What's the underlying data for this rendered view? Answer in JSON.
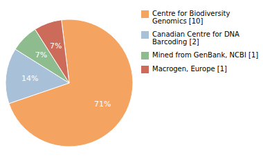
{
  "chart_data": {
    "type": "pie",
    "categories": [
      "Centre for Biodiversity\nGenomics [10]",
      "Canadian Centre for DNA\nBarcoding [2]",
      "Mined from GenBank, NCBI [1]",
      "Macrogen, Europe [1]"
    ],
    "values": [
      71,
      14,
      7,
      7
    ],
    "value_labels": [
      "71%",
      "14%",
      "7%",
      "7%"
    ],
    "colors": [
      "#F4A460",
      "#A8C0D8",
      "#8FBC8F",
      "#CD6B5A"
    ],
    "data_labels": true,
    "legend": "right"
  }
}
